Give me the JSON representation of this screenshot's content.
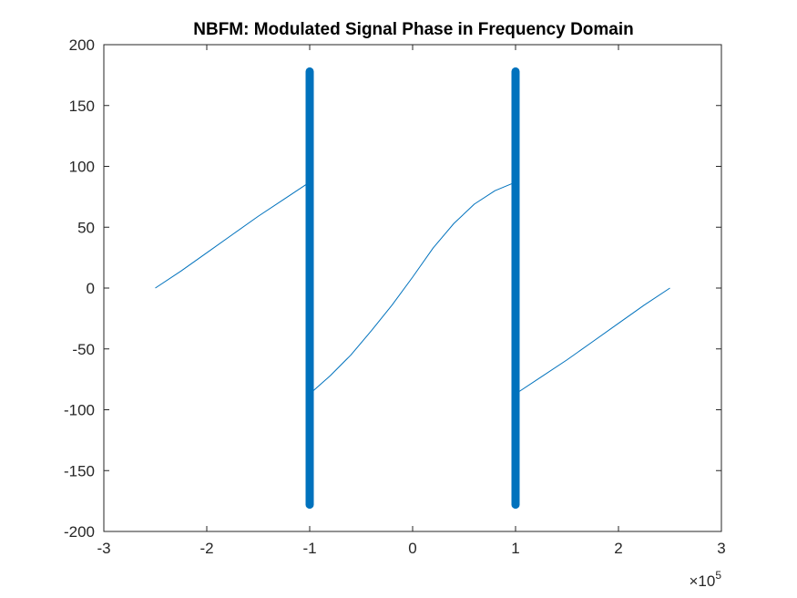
{
  "chart_data": {
    "type": "line",
    "title": "NBFM: Modulated Signal Phase in Frequency Domain",
    "xlabel": "",
    "ylabel": "",
    "xlim": [
      -3,
      3
    ],
    "ylim": [
      -200,
      200
    ],
    "x_scale_label": "×10",
    "x_scale_exponent": "5",
    "x_ticks": [
      -3,
      -2,
      -1,
      0,
      1,
      2,
      3
    ],
    "x_tick_labels": [
      "-3",
      "-2",
      "-1",
      "0",
      "1",
      "2",
      "3"
    ],
    "y_ticks": [
      -200,
      -150,
      -100,
      -50,
      0,
      50,
      100,
      150,
      200
    ],
    "y_tick_labels": [
      "-200",
      "-150",
      "-100",
      "-50",
      "0",
      "50",
      "100",
      "150",
      "200"
    ],
    "grid": false,
    "box": true,
    "series_color": "#0072BD",
    "series": [
      {
        "segment": "left-branch",
        "x": [
          -2.5,
          -2.25,
          -2.0,
          -1.75,
          -1.5,
          -1.25,
          -1.0
        ],
        "y": [
          0,
          14,
          29,
          44,
          59,
          73,
          87
        ]
      },
      {
        "segment": "middle-branch",
        "x": [
          -1.0,
          -0.8,
          -0.6,
          -0.4,
          -0.2,
          0.0,
          0.2,
          0.4,
          0.6,
          0.8,
          1.0
        ],
        "y": [
          -87,
          -72,
          -55,
          -35,
          -14,
          9,
          33,
          53,
          69,
          80,
          87
        ]
      },
      {
        "segment": "right-branch",
        "x": [
          1.0,
          1.25,
          1.5,
          1.75,
          2.0,
          2.25,
          2.5
        ],
        "y": [
          -87,
          -73,
          -59,
          -44,
          -29,
          -14,
          0
        ]
      },
      {
        "segment": "phase-spike",
        "x": [
          -1.0,
          -1.0
        ],
        "y": [
          -178,
          178
        ],
        "thick": true
      },
      {
        "segment": "phase-spike",
        "x": [
          1.0,
          1.0
        ],
        "y": [
          -178,
          178
        ],
        "thick": true
      }
    ]
  }
}
